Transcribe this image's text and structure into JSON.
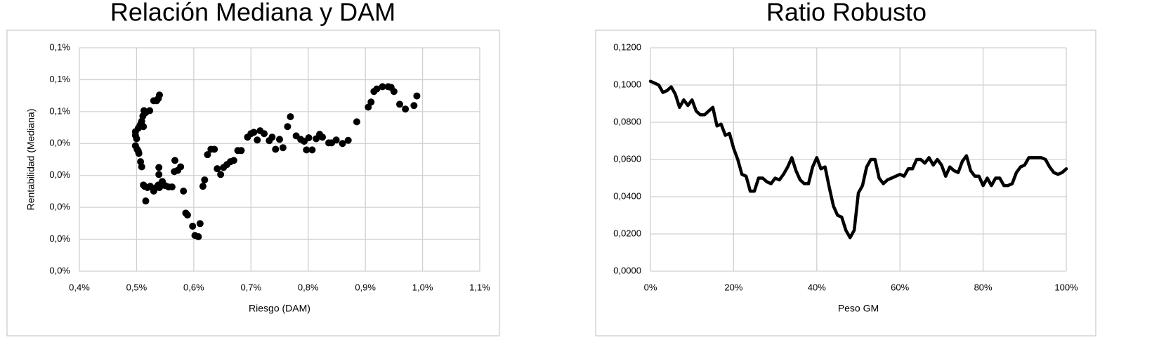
{
  "chart_data": [
    {
      "type": "scatter",
      "title": "Relación Mediana y DAM",
      "x_label": "Riesgo (DAM)",
      "y_label": "Rentabilidad (Mediana)",
      "color": "#000000",
      "grid": true,
      "x": [
        0.498,
        0.498,
        0.5,
        0.498,
        0.501,
        0.503,
        0.504,
        0.503,
        0.506,
        0.508,
        0.509,
        0.511,
        0.512,
        0.513,
        0.516,
        0.507,
        0.509,
        0.512,
        0.514,
        0.516,
        0.519,
        0.524,
        0.53,
        0.534,
        0.538,
        0.54,
        0.543,
        0.545,
        0.55,
        0.556,
        0.562,
        0.523,
        0.53,
        0.535,
        0.538,
        0.54,
        0.539,
        0.539,
        0.566,
        0.567,
        0.572,
        0.577,
        0.582,
        0.586,
        0.589,
        0.598,
        0.602,
        0.608,
        0.611,
        0.616,
        0.619,
        0.624,
        0.63,
        0.636,
        0.641,
        0.647,
        0.652,
        0.658,
        0.664,
        0.67,
        0.677,
        0.683,
        0.694,
        0.7,
        0.705,
        0.711,
        0.716,
        0.723,
        0.732,
        0.737,
        0.743,
        0.75,
        0.756,
        0.764,
        0.769,
        0.779,
        0.787,
        0.793,
        0.797,
        0.801,
        0.807,
        0.814,
        0.82,
        0.825,
        0.836,
        0.841,
        0.849,
        0.86,
        0.87,
        0.885,
        0.905,
        0.91,
        0.915,
        0.92,
        0.93,
        0.94,
        0.945,
        0.95,
        0.96,
        0.97,
        0.985,
        0.99
      ],
      "values": [
        0.0437,
        0.0426,
        0.0415,
        0.0393,
        0.0382,
        0.0376,
        0.0369,
        0.0448,
        0.0457,
        0.0464,
        0.047,
        0.0486,
        0.0453,
        0.0503,
        0.0497,
        0.0343,
        0.0327,
        0.027,
        0.0266,
        0.022,
        0.0262,
        0.0266,
        0.0251,
        0.0262,
        0.027,
        0.0262,
        0.027,
        0.0281,
        0.0268,
        0.0264,
        0.0264,
        0.0503,
        0.0534,
        0.0534,
        0.0541,
        0.0552,
        0.0303,
        0.0325,
        0.0312,
        0.0347,
        0.0316,
        0.0327,
        0.0251,
        0.0182,
        0.0176,
        0.0141,
        0.0112,
        0.0108,
        0.0149,
        0.0266,
        0.0286,
        0.0365,
        0.0382,
        0.0382,
        0.0321,
        0.0303,
        0.0325,
        0.0334,
        0.0343,
        0.0347,
        0.0378,
        0.0378,
        0.042,
        0.0431,
        0.0435,
        0.0411,
        0.044,
        0.0431,
        0.0409,
        0.042,
        0.0382,
        0.0413,
        0.0387,
        0.0453,
        0.0484,
        0.0424,
        0.0413,
        0.0407,
        0.038,
        0.0418,
        0.038,
        0.0415,
        0.0429,
        0.042,
        0.0402,
        0.0402,
        0.0411,
        0.04,
        0.041,
        0.0468,
        0.0514,
        0.053,
        0.0563,
        0.0571,
        0.0578,
        0.0578,
        0.0576,
        0.0563,
        0.0523,
        0.0508,
        0.0519,
        0.0549
      ],
      "xlim": [
        0.4,
        1.1
      ],
      "xticks": [
        {
          "value": 0.4,
          "label": "0,4%"
        },
        {
          "value": 0.5,
          "label": "0,5%"
        },
        {
          "value": 0.6,
          "label": "0,6%"
        },
        {
          "value": 0.7,
          "label": "0,7%"
        },
        {
          "value": 0.8,
          "label": "0,8%"
        },
        {
          "value": 0.9,
          "label": "0,9%"
        },
        {
          "value": 1.0,
          "label": "1,0%"
        },
        {
          "value": 1.1,
          "label": "1,1%"
        }
      ],
      "ylim": [
        0,
        0.07
      ],
      "yticks": [
        {
          "value": 0,
          "label": "0,0%"
        },
        {
          "value": 0.01,
          "label": "0,0%"
        },
        {
          "value": 0.02,
          "label": "0,0%"
        },
        {
          "value": 0.03,
          "label": "0,0%"
        },
        {
          "value": 0.04,
          "label": "0,0%"
        },
        {
          "value": 0.05,
          "label": "0,1%"
        },
        {
          "value": 0.06,
          "label": "0,1%"
        },
        {
          "value": 0.07,
          "label": "0,1%"
        }
      ]
    },
    {
      "type": "line",
      "title": "Ratio Robusto",
      "x_label": "Peso GM",
      "color": "#000000",
      "grid": true,
      "x": [
        0,
        1,
        2,
        3,
        4,
        5,
        6,
        7,
        8,
        9,
        10,
        11,
        12,
        13,
        14,
        15,
        16,
        17,
        18,
        19,
        20,
        21,
        22,
        23,
        24,
        25,
        26,
        27,
        28,
        29,
        30,
        31,
        32,
        33,
        34,
        35,
        36,
        37,
        38,
        39,
        40,
        41,
        42,
        43,
        44,
        45,
        46,
        47,
        48,
        49,
        50,
        51,
        52,
        53,
        54,
        55,
        56,
        57,
        58,
        59,
        60,
        61,
        62,
        63,
        64,
        65,
        66,
        67,
        68,
        69,
        70,
        71,
        72,
        73,
        74,
        75,
        76,
        77,
        78,
        79,
        80,
        81,
        82,
        83,
        84,
        85,
        86,
        87,
        88,
        89,
        90,
        91,
        92,
        93,
        94,
        95,
        96,
        97,
        98,
        99,
        100
      ],
      "values": [
        0.102,
        0.101,
        0.1,
        0.096,
        0.097,
        0.099,
        0.095,
        0.088,
        0.092,
        0.089,
        0.092,
        0.086,
        0.084,
        0.084,
        0.086,
        0.088,
        0.078,
        0.079,
        0.073,
        0.074,
        0.066,
        0.06,
        0.052,
        0.051,
        0.043,
        0.043,
        0.05,
        0.05,
        0.048,
        0.047,
        0.05,
        0.049,
        0.052,
        0.056,
        0.061,
        0.054,
        0.049,
        0.047,
        0.047,
        0.056,
        0.061,
        0.055,
        0.056,
        0.045,
        0.035,
        0.03,
        0.029,
        0.022,
        0.018,
        0.022,
        0.042,
        0.046,
        0.056,
        0.06,
        0.06,
        0.05,
        0.047,
        0.049,
        0.05,
        0.051,
        0.052,
        0.051,
        0.055,
        0.055,
        0.06,
        0.06,
        0.058,
        0.061,
        0.057,
        0.06,
        0.057,
        0.051,
        0.056,
        0.054,
        0.053,
        0.059,
        0.062,
        0.054,
        0.051,
        0.051,
        0.046,
        0.05,
        0.046,
        0.05,
        0.05,
        0.046,
        0.046,
        0.047,
        0.053,
        0.056,
        0.057,
        0.061,
        0.061,
        0.061,
        0.061,
        0.06,
        0.056,
        0.053,
        0.052,
        0.053,
        0.055
      ],
      "xlim": [
        0,
        100
      ],
      "xticks": [
        {
          "value": 0,
          "label": "0%"
        },
        {
          "value": 20,
          "label": "20%"
        },
        {
          "value": 40,
          "label": "40%"
        },
        {
          "value": 60,
          "label": "60%"
        },
        {
          "value": 80,
          "label": "80%"
        },
        {
          "value": 100,
          "label": "100%"
        }
      ],
      "ylim": [
        0,
        0.12
      ],
      "yticks": [
        {
          "value": 0,
          "label": "0,0000"
        },
        {
          "value": 0.02,
          "label": "0,0200"
        },
        {
          "value": 0.04,
          "label": "0,0400"
        },
        {
          "value": 0.06,
          "label": "0,0600"
        },
        {
          "value": 0.08,
          "label": "0,0800"
        },
        {
          "value": 0.1,
          "label": "0,1000"
        },
        {
          "value": 0.12,
          "label": "0,1200"
        }
      ]
    }
  ]
}
